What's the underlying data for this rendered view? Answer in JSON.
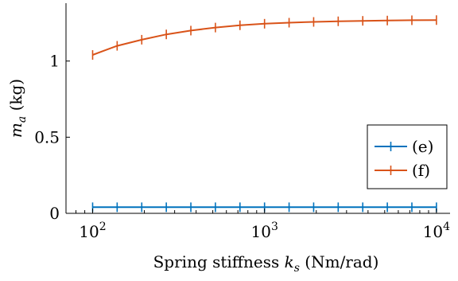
{
  "chart_data": {
    "type": "line",
    "title": "",
    "xlabel": "Spring stiffness k_s (Nm/rad)",
    "xlabel_parts": {
      "prefix": "Spring stiffness ",
      "symbol": "k",
      "subscript": "s",
      "suffix": " (Nm/rad)"
    },
    "ylabel": "m_a (kg)",
    "ylabel_parts": {
      "symbol": "m",
      "subscript": "a",
      "suffix": " (kg)"
    },
    "x_scale": "log",
    "xlim": [
      70,
      12000
    ],
    "ylim": [
      0,
      1.38
    ],
    "x_ticks": [
      {
        "value": 100,
        "base": "10",
        "exp": "2"
      },
      {
        "value": 1000,
        "base": "10",
        "exp": "3"
      },
      {
        "value": 10000,
        "base": "10",
        "exp": "4"
      }
    ],
    "y_ticks": [
      {
        "value": 0,
        "label": "0"
      },
      {
        "value": 0.5,
        "label": "0.5"
      },
      {
        "value": 1,
        "label": "1"
      }
    ],
    "legend_placement": "lower-right",
    "series": [
      {
        "name": "(e)",
        "color": "#0072BD",
        "x": [
          100,
          138.9,
          193.1,
          268.3,
          372.8,
          517.9,
          719.7,
          1000,
          1389.5,
          1930.7,
          2682.7,
          3727.6,
          5179.5,
          7196.9,
          10000
        ],
        "y": [
          0.04,
          0.04,
          0.04,
          0.04,
          0.04,
          0.04,
          0.04,
          0.04,
          0.04,
          0.04,
          0.04,
          0.04,
          0.04,
          0.04,
          0.04
        ]
      },
      {
        "name": "(f)",
        "color": "#D95319",
        "x": [
          100,
          138.9,
          193.1,
          268.3,
          372.8,
          517.9,
          719.7,
          1000,
          1389.5,
          1930.7,
          2682.7,
          3727.6,
          5179.5,
          7196.9,
          10000
        ],
        "y": [
          1.04,
          1.1,
          1.14,
          1.175,
          1.2,
          1.22,
          1.235,
          1.245,
          1.252,
          1.257,
          1.261,
          1.264,
          1.266,
          1.268,
          1.269
        ]
      }
    ]
  }
}
